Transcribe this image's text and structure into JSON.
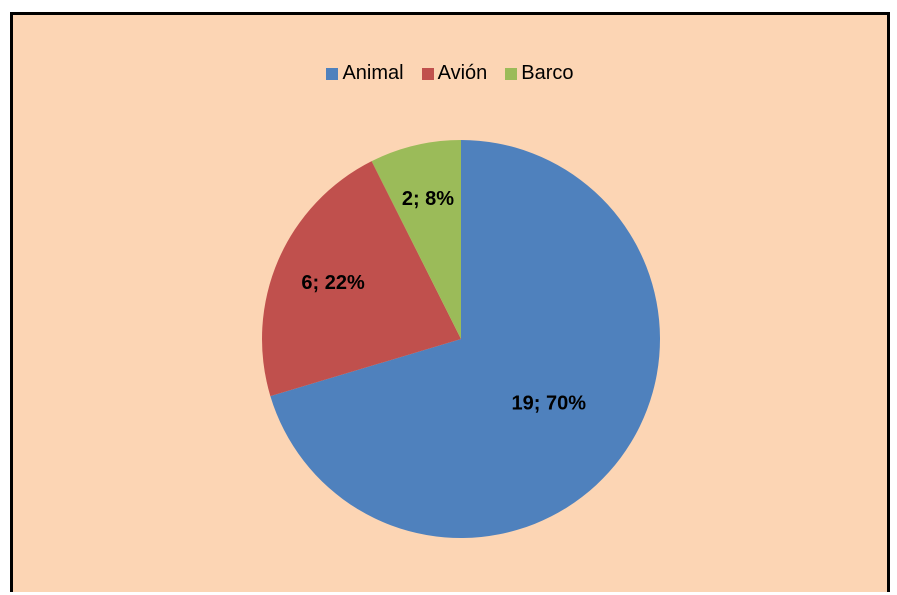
{
  "chart_data": {
    "type": "pie",
    "categories": [
      "Animal",
      "Avión",
      "Barco"
    ],
    "values": [
      19,
      6,
      2
    ],
    "percentages": [
      "70%",
      "22%",
      "8%"
    ],
    "data_labels": [
      "19; 70%",
      "6; 22%",
      "2; 8%"
    ],
    "colors": [
      "#4f81bd",
      "#c0504d",
      "#9bbb59"
    ],
    "legend_position": "top",
    "title": ""
  },
  "legend": {
    "items": [
      {
        "label": "Animal",
        "color": "#4f81bd"
      },
      {
        "label": "Avión",
        "color": "#c0504d"
      },
      {
        "label": "Barco",
        "color": "#9bbb59"
      }
    ]
  },
  "background_color": "#fcd5b4"
}
